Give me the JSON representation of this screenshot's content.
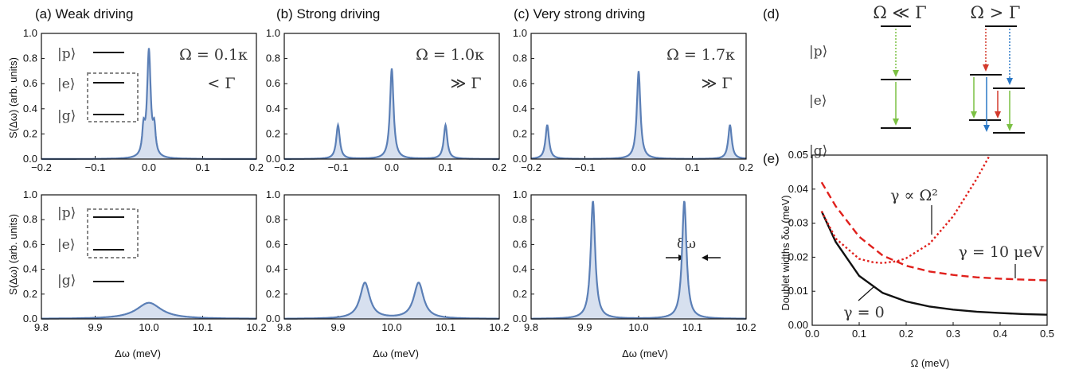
{
  "panels": {
    "a": {
      "title": "(a) Weak driving",
      "param": "Ω = 0.1κ",
      "relation": "< Γ"
    },
    "b": {
      "title": "(b) Strong driving",
      "param": "Ω = 1.0κ",
      "relation": "≫ Γ"
    },
    "c": {
      "title": "(c) Very strong driving",
      "param": "Ω = 1.7κ",
      "relation": "≫ Γ"
    },
    "d": {
      "label": "(d)",
      "left_condition": "Ω ≪ Γ",
      "right_condition": "Ω > Γ"
    },
    "e": {
      "label": "(e)"
    }
  },
  "levels": {
    "p": "|p⟩",
    "e": "|e⟩",
    "g": "|g⟩"
  },
  "labels": {
    "spectrum_ylabel": "S(Δω) (arb. units)",
    "delta_omega_xlabel": "Δω (meV)",
    "doublet_ylabel": "Doublet widths δω (meV)",
    "omega_xlabel": "Ω (meV)",
    "delta_omega_marker": "δω",
    "gamma_prop": "γ ∝ Ω²",
    "gamma_ten": "γ = 10 μeV",
    "gamma_zero": "γ = 0"
  },
  "colors": {
    "spectrum": "#5b7fb6",
    "fill": "#d7e0ef",
    "green": "#7bc043",
    "red": "#d33a2c",
    "blue": "#2b78c6",
    "dashed_red": "#e0201c",
    "black": "#111111",
    "box": "#888888"
  },
  "chart_data": [
    {
      "id": "a-top",
      "type": "line",
      "title": "(a) Weak driving",
      "xlim": [
        -0.2,
        0.2
      ],
      "ylim": [
        0,
        1.0
      ],
      "xticks": [
        "-0.2",
        "-0.1",
        "0.0",
        "0.1",
        "0.2"
      ],
      "yticks": [
        "0.0",
        "0.2",
        "0.4",
        "0.6",
        "0.8",
        "1.0"
      ],
      "ylabel": "S(Δω) (arb. units)",
      "peaks": [
        {
          "x": 0.0,
          "y": 0.85,
          "w": 0.004
        },
        {
          "x": -0.01,
          "y": 0.2,
          "w": 0.003
        },
        {
          "x": 0.01,
          "y": 0.2,
          "w": 0.003
        }
      ]
    },
    {
      "id": "b-top",
      "type": "line",
      "title": "(b) Strong driving",
      "xlim": [
        -0.2,
        0.2
      ],
      "ylim": [
        0,
        1.0
      ],
      "xticks": [
        "-0.2",
        "-0.1",
        "0.0",
        "0.1",
        "0.2"
      ],
      "yticks": [
        "0.0",
        "0.2",
        "0.4",
        "0.6",
        "0.8",
        "1.0"
      ],
      "peaks": [
        {
          "x": -0.1,
          "y": 0.27,
          "w": 0.004
        },
        {
          "x": 0.0,
          "y": 0.72,
          "w": 0.004
        },
        {
          "x": 0.1,
          "y": 0.27,
          "w": 0.004
        }
      ]
    },
    {
      "id": "c-top",
      "type": "line",
      "title": "(c) Very strong driving",
      "xlim": [
        -0.2,
        0.2
      ],
      "ylim": [
        0,
        1.0
      ],
      "xticks": [
        "-0.2",
        "-0.1",
        "0.0",
        "0.1",
        "0.2"
      ],
      "yticks": [
        "0.0",
        "0.2",
        "0.4",
        "0.6",
        "0.8",
        "1.0"
      ],
      "peaks": [
        {
          "x": -0.17,
          "y": 0.27,
          "w": 0.004
        },
        {
          "x": 0.0,
          "y": 0.7,
          "w": 0.004
        },
        {
          "x": 0.17,
          "y": 0.27,
          "w": 0.004
        }
      ]
    },
    {
      "id": "a-bottom",
      "type": "line",
      "xlim": [
        9.8,
        10.2
      ],
      "ylim": [
        0,
        1.0
      ],
      "xticks": [
        "9.8",
        "9.9",
        "10.0",
        "10.1",
        "10.2"
      ],
      "yticks": [
        "0.0",
        "0.2",
        "0.4",
        "0.6",
        "0.8",
        "1.0"
      ],
      "xlabel": "Δω (meV)",
      "ylabel": "S(Δω) (arb. units)",
      "peaks": [
        {
          "x": 10.0,
          "y": 0.13,
          "w": 0.028
        }
      ]
    },
    {
      "id": "b-bottom",
      "type": "line",
      "xlim": [
        9.8,
        10.2
      ],
      "ylim": [
        0,
        1.0
      ],
      "xticks": [
        "9.8",
        "9.9",
        "10.0",
        "10.1",
        "10.2"
      ],
      "yticks": [
        "0.0",
        "0.2",
        "0.4",
        "0.6",
        "0.8",
        "1.0"
      ],
      "xlabel": "Δω (meV)",
      "peaks": [
        {
          "x": 9.95,
          "y": 0.29,
          "w": 0.011
        },
        {
          "x": 10.05,
          "y": 0.29,
          "w": 0.011
        }
      ]
    },
    {
      "id": "c-bottom",
      "type": "line",
      "xlim": [
        9.8,
        10.2
      ],
      "ylim": [
        0,
        1.0
      ],
      "xticks": [
        "9.8",
        "9.9",
        "10.0",
        "10.1",
        "10.2"
      ],
      "yticks": [
        "0.0",
        "0.2",
        "0.4",
        "0.6",
        "0.8",
        "1.0"
      ],
      "xlabel": "Δω (meV)",
      "peaks": [
        {
          "x": 9.915,
          "y": 0.95,
          "w": 0.005
        },
        {
          "x": 10.085,
          "y": 0.95,
          "w": 0.005
        }
      ]
    },
    {
      "id": "e",
      "type": "line",
      "title": "(e)",
      "xlim": [
        0,
        0.5
      ],
      "ylim": [
        0,
        0.05
      ],
      "xticks": [
        "0.0",
        "0.1",
        "0.2",
        "0.3",
        "0.4",
        "0.5"
      ],
      "yticks": [
        "0.00",
        "0.01",
        "0.02",
        "0.03",
        "0.04",
        "0.05"
      ],
      "xlabel": "Ω (meV)",
      "ylabel": "Doublet widths δω (meV)",
      "series": [
        {
          "name": "γ = 0",
          "style": "solid",
          "x": [
            0.02,
            0.05,
            0.1,
            0.15,
            0.2,
            0.25,
            0.3,
            0.35,
            0.4,
            0.45,
            0.5
          ],
          "y": [
            0.0335,
            0.0245,
            0.0145,
            0.0095,
            0.007,
            0.0055,
            0.0046,
            0.004,
            0.0036,
            0.0033,
            0.0031
          ]
        },
        {
          "name": "γ = 10 μeV",
          "style": "dashed",
          "x": [
            0.02,
            0.05,
            0.1,
            0.15,
            0.2,
            0.25,
            0.3,
            0.35,
            0.4,
            0.45,
            0.5
          ],
          "y": [
            0.042,
            0.035,
            0.026,
            0.0205,
            0.0175,
            0.0158,
            0.0148,
            0.0141,
            0.0137,
            0.0134,
            0.0132
          ]
        },
        {
          "name": "γ ∝ Ω²",
          "style": "dotted",
          "x": [
            0.02,
            0.05,
            0.1,
            0.13,
            0.15,
            0.18,
            0.2,
            0.25,
            0.3,
            0.35,
            0.38
          ],
          "y": [
            0.0335,
            0.0255,
            0.0195,
            0.0185,
            0.0183,
            0.0188,
            0.0197,
            0.024,
            0.032,
            0.043,
            0.0505
          ]
        }
      ]
    }
  ]
}
